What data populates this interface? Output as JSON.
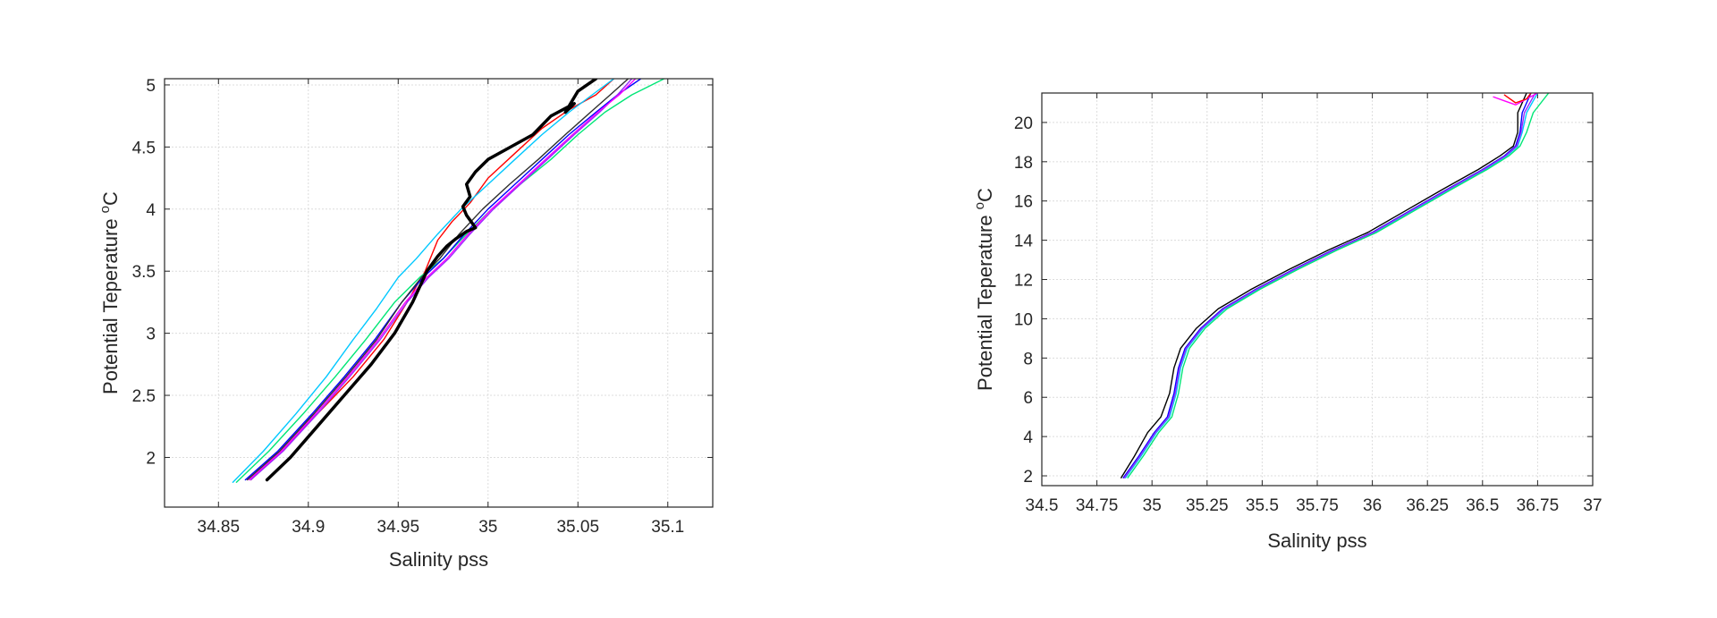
{
  "chart_data": [
    {
      "type": "line",
      "xlabel": "Salinity pss",
      "ylabel_main": "Potential Teperature ",
      "ylabel_sup": "o",
      "ylabel_unit": "C",
      "xlim": [
        34.82,
        35.125
      ],
      "ylim": [
        1.6,
        5.05
      ],
      "xticks": [
        34.85,
        34.9,
        34.95,
        35,
        35.05,
        35.1
      ],
      "yticks": [
        2,
        2.5,
        3,
        3.5,
        4,
        4.5,
        5
      ],
      "xtick_labels": [
        "34.85",
        "34.9",
        "34.95",
        "35",
        "35.05",
        "35.1"
      ],
      "ytick_labels": [
        "2",
        "2.5",
        "3",
        "3.5",
        "4",
        "4.5",
        "5"
      ],
      "grid": true,
      "series": [
        {
          "color": "#000000",
          "bold": true,
          "x": [
            34.877,
            34.89,
            34.905,
            34.92,
            34.935,
            34.948,
            34.958,
            34.966,
            34.972,
            34.977,
            34.982,
            34.988,
            34.993,
            34.988,
            34.986,
            34.99,
            34.988,
            34.993,
            35.0,
            35.01,
            35.025,
            35.035,
            35.048,
            35.043,
            35.05,
            35.06
          ],
          "y": [
            1.82,
            2.0,
            2.25,
            2.5,
            2.75,
            3.0,
            3.25,
            3.5,
            3.62,
            3.7,
            3.76,
            3.82,
            3.85,
            3.95,
            4.02,
            4.1,
            4.2,
            4.3,
            4.4,
            4.48,
            4.6,
            4.75,
            4.85,
            4.78,
            4.95,
            5.05
          ]
        },
        {
          "color": "#ff0000",
          "x": [
            34.868,
            34.885,
            34.905,
            34.925,
            34.942,
            34.955,
            34.965,
            34.972,
            34.98,
            34.99,
            35.0,
            35.015,
            35.03,
            35.045,
            35.06,
            35.07
          ],
          "y": [
            1.82,
            2.05,
            2.35,
            2.65,
            2.95,
            3.25,
            3.5,
            3.75,
            3.9,
            4.05,
            4.25,
            4.45,
            4.65,
            4.8,
            4.92,
            5.05
          ]
        },
        {
          "color": "#00c8ff",
          "x": [
            34.858,
            34.875,
            34.893,
            34.91,
            34.925,
            34.938,
            34.95,
            34.96,
            34.972,
            34.985,
            35.0,
            35.015,
            35.03,
            35.045,
            35.058,
            35.07
          ],
          "y": [
            1.8,
            2.05,
            2.35,
            2.65,
            2.95,
            3.2,
            3.45,
            3.6,
            3.8,
            4.0,
            4.2,
            4.4,
            4.6,
            4.78,
            4.92,
            5.05
          ]
        },
        {
          "color": "#00e676",
          "x": [
            34.86,
            34.878,
            34.897,
            34.915,
            34.932,
            34.948,
            34.962,
            34.975,
            34.988,
            35.002,
            35.018,
            35.035,
            35.05,
            35.065,
            35.08,
            35.098
          ],
          "y": [
            1.8,
            2.05,
            2.35,
            2.65,
            2.95,
            3.25,
            3.45,
            3.6,
            3.8,
            4.0,
            4.2,
            4.4,
            4.6,
            4.78,
            4.92,
            5.05
          ]
        },
        {
          "color": "#0000ff",
          "x": [
            34.865,
            34.883,
            34.902,
            34.92,
            34.937,
            34.952,
            34.964,
            34.975,
            34.987,
            35.0,
            35.015,
            35.03,
            35.045,
            35.06,
            35.072,
            35.085
          ],
          "y": [
            1.82,
            2.05,
            2.35,
            2.65,
            2.95,
            3.25,
            3.45,
            3.6,
            3.8,
            4.0,
            4.2,
            4.4,
            4.6,
            4.78,
            4.92,
            5.05
          ]
        },
        {
          "color": "#9c27ff",
          "x": [
            34.868,
            34.886,
            34.905,
            34.923,
            34.94,
            34.955,
            34.967,
            34.978,
            34.99,
            35.003,
            35.018,
            35.033,
            35.048,
            35.062,
            35.072,
            35.08
          ],
          "y": [
            1.82,
            2.05,
            2.35,
            2.65,
            2.95,
            3.25,
            3.45,
            3.6,
            3.8,
            4.0,
            4.2,
            4.4,
            4.6,
            4.78,
            4.92,
            5.05
          ]
        },
        {
          "color": "#ff00ff",
          "x": [
            34.867,
            34.885,
            34.904,
            34.922,
            34.939,
            34.954,
            34.966,
            34.977,
            34.989,
            35.002,
            35.017,
            35.032,
            35.047,
            35.061,
            35.073,
            35.082
          ],
          "y": [
            1.82,
            2.05,
            2.35,
            2.65,
            2.95,
            3.25,
            3.45,
            3.6,
            3.8,
            4.0,
            4.2,
            4.4,
            4.6,
            4.78,
            4.92,
            5.05
          ]
        },
        {
          "color": "#303030",
          "x": [
            34.866,
            34.884,
            34.903,
            34.921,
            34.938,
            34.952,
            34.963,
            34.973,
            34.984,
            34.997,
            35.012,
            35.028,
            35.043,
            35.057,
            35.068,
            35.078
          ],
          "y": [
            1.82,
            2.05,
            2.35,
            2.65,
            2.95,
            3.25,
            3.45,
            3.6,
            3.8,
            4.0,
            4.2,
            4.4,
            4.6,
            4.78,
            4.92,
            5.05
          ]
        }
      ]
    },
    {
      "type": "line",
      "xlabel": "Salinity pss",
      "ylabel_main": "Potential Teperature ",
      "ylabel_sup": "o",
      "ylabel_unit": "C",
      "xlim": [
        34.5,
        37
      ],
      "ylim": [
        1.5,
        21.5
      ],
      "xticks": [
        34.5,
        34.75,
        35,
        35.25,
        35.5,
        35.75,
        36,
        36.25,
        36.5,
        36.75,
        37
      ],
      "yticks": [
        2,
        4,
        6,
        8,
        10,
        12,
        14,
        16,
        18,
        20
      ],
      "xtick_labels": [
        "34.5",
        "34.75",
        "35",
        "35.25",
        "35.5",
        "35.75",
        "36",
        "36.25",
        "36.5",
        "36.75",
        "37"
      ],
      "ytick_labels": [
        "2",
        "4",
        "6",
        "8",
        "10",
        "12",
        "14",
        "16",
        "18",
        "20"
      ],
      "grid": true,
      "series": [
        {
          "color": "#000000",
          "x": [
            34.86,
            34.92,
            34.98,
            35.04,
            35.08,
            35.1,
            35.13,
            35.2,
            35.3,
            35.45,
            35.62,
            35.8,
            35.98,
            36.15,
            36.32,
            36.48,
            36.58,
            36.64,
            36.66,
            36.66,
            36.7
          ],
          "y": [
            1.9,
            3.0,
            4.2,
            5.0,
            6.2,
            7.5,
            8.5,
            9.5,
            10.5,
            11.5,
            12.5,
            13.5,
            14.4,
            15.5,
            16.6,
            17.6,
            18.3,
            18.8,
            19.5,
            20.5,
            21.5
          ]
        },
        {
          "color": "#0000ff",
          "x": [
            34.87,
            34.94,
            35.01,
            35.07,
            35.1,
            35.12,
            35.15,
            35.22,
            35.32,
            35.47,
            35.64,
            35.82,
            36.0,
            36.17,
            36.34,
            36.5,
            36.6,
            36.65,
            36.67,
            36.68,
            36.72
          ],
          "y": [
            1.9,
            3.0,
            4.2,
            5.0,
            6.2,
            7.5,
            8.5,
            9.5,
            10.5,
            11.5,
            12.5,
            13.5,
            14.4,
            15.5,
            16.6,
            17.6,
            18.3,
            18.8,
            19.5,
            20.5,
            21.5
          ]
        },
        {
          "color": "#00c8ff",
          "x": [
            34.88,
            34.95,
            35.02,
            35.08,
            35.11,
            35.13,
            35.16,
            35.23,
            35.33,
            35.48,
            35.65,
            35.83,
            36.01,
            36.18,
            36.35,
            36.51,
            36.61,
            36.66,
            36.68,
            36.7,
            36.75
          ],
          "y": [
            1.9,
            3.0,
            4.2,
            5.0,
            6.2,
            7.5,
            8.5,
            9.5,
            10.5,
            11.5,
            12.5,
            13.5,
            14.4,
            15.5,
            16.6,
            17.6,
            18.3,
            18.8,
            19.5,
            20.5,
            21.5
          ]
        },
        {
          "color": "#00e676",
          "x": [
            34.89,
            34.96,
            35.03,
            35.09,
            35.12,
            35.14,
            35.17,
            35.24,
            35.34,
            35.49,
            35.66,
            35.84,
            36.02,
            36.19,
            36.36,
            36.52,
            36.62,
            36.67,
            36.7,
            36.73,
            36.8
          ],
          "y": [
            1.9,
            3.0,
            4.2,
            5.0,
            6.2,
            7.5,
            8.5,
            9.5,
            10.5,
            11.5,
            12.5,
            13.5,
            14.4,
            15.5,
            16.6,
            17.6,
            18.3,
            18.8,
            19.5,
            20.5,
            21.5
          ]
        },
        {
          "color": "#9c27ff",
          "x": [
            34.875,
            34.945,
            35.015,
            35.075,
            35.105,
            35.125,
            35.155,
            35.225,
            35.325,
            35.475,
            35.645,
            35.825,
            36.005,
            36.175,
            36.345,
            36.505,
            36.605,
            36.655,
            36.675,
            36.69,
            36.74
          ],
          "y": [
            1.9,
            3.0,
            4.2,
            5.0,
            6.2,
            7.5,
            8.5,
            9.5,
            10.5,
            11.5,
            12.5,
            13.5,
            14.4,
            15.5,
            16.6,
            17.6,
            18.3,
            18.8,
            19.5,
            20.5,
            21.5
          ]
        },
        {
          "color": "#ff00ff",
          "x": [
            36.55,
            36.6,
            36.65,
            36.7,
            36.75
          ],
          "y": [
            21.3,
            21.1,
            20.9,
            21.2,
            21.5
          ]
        },
        {
          "color": "#ff0000",
          "x": [
            36.6,
            36.65,
            36.7,
            36.72
          ],
          "y": [
            21.4,
            21.0,
            21.2,
            21.5
          ]
        }
      ]
    }
  ]
}
